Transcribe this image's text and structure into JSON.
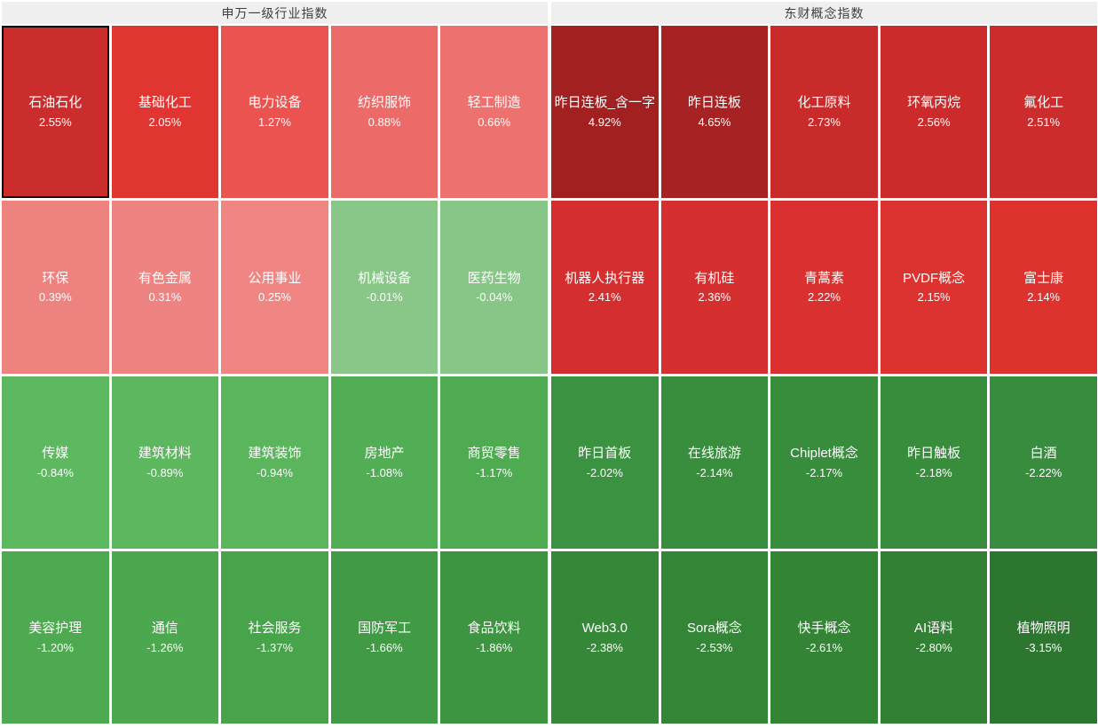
{
  "page": {
    "background": "#ffffff",
    "gutter_color": "#ffffff",
    "header_bg": "#efefef",
    "header_text_color": "#404040",
    "tile_text_color": "#ffffff",
    "selected_border_color": "#000000"
  },
  "chart_data": {
    "type": "heatmap",
    "legend_rule": "red = positive daily change, green = negative daily change; darker shade = larger magnitude",
    "groups": [
      {
        "title": "申万一级行业指数",
        "tiles": [
          {
            "label": "石油石化",
            "pct": 2.55,
            "display": "2.55%",
            "color": "#cb2c2c",
            "selected": true
          },
          {
            "label": "基础化工",
            "pct": 2.05,
            "display": "2.05%",
            "color": "#e03531",
            "selected": false
          },
          {
            "label": "电力设备",
            "pct": 1.27,
            "display": "1.27%",
            "color": "#eb5350",
            "selected": false
          },
          {
            "label": "纺织服饰",
            "pct": 0.88,
            "display": "0.88%",
            "color": "#ec6b68",
            "selected": false
          },
          {
            "label": "轻工制造",
            "pct": 0.66,
            "display": "0.66%",
            "color": "#ed716e",
            "selected": false
          },
          {
            "label": "环保",
            "pct": 0.39,
            "display": "0.39%",
            "color": "#ee827f",
            "selected": false
          },
          {
            "label": "有色金属",
            "pct": 0.31,
            "display": "0.31%",
            "color": "#ee8481",
            "selected": false
          },
          {
            "label": "公用事业",
            "pct": 0.25,
            "display": "0.25%",
            "color": "#ef8683",
            "selected": false
          },
          {
            "label": "机械设备",
            "pct": -0.01,
            "display": "-0.01%",
            "color": "#88c788",
            "selected": false
          },
          {
            "label": "医药生物",
            "pct": -0.04,
            "display": "-0.04%",
            "color": "#87c687",
            "selected": false
          },
          {
            "label": "传媒",
            "pct": -0.84,
            "display": "-0.84%",
            "color": "#5db95f",
            "selected": false
          },
          {
            "label": "建筑材料",
            "pct": -0.89,
            "display": "-0.89%",
            "color": "#5cb75e",
            "selected": false
          },
          {
            "label": "建筑装饰",
            "pct": -0.94,
            "display": "-0.94%",
            "color": "#5ab55c",
            "selected": false
          },
          {
            "label": "房地产",
            "pct": -1.08,
            "display": "-1.08%",
            "color": "#51ae54",
            "selected": false
          },
          {
            "label": "商贸零售",
            "pct": -1.17,
            "display": "-1.17%",
            "color": "#4eab51",
            "selected": false
          },
          {
            "label": "美容护理",
            "pct": -1.2,
            "display": "-1.20%",
            "color": "#4daa50",
            "selected": false
          },
          {
            "label": "通信",
            "pct": -1.26,
            "display": "-1.26%",
            "color": "#4ba84e",
            "selected": false
          },
          {
            "label": "社会服务",
            "pct": -1.37,
            "display": "-1.37%",
            "color": "#48a44b",
            "selected": false
          },
          {
            "label": "国防军工",
            "pct": -1.66,
            "display": "-1.66%",
            "color": "#419b45",
            "selected": false
          },
          {
            "label": "食品饮料",
            "pct": -1.86,
            "display": "-1.86%",
            "color": "#3d9541",
            "selected": false
          }
        ]
      },
      {
        "title": "东财概念指数",
        "tiles": [
          {
            "label": "昨日连板_含一字",
            "pct": 4.92,
            "display": "4.92%",
            "color": "#a32020",
            "selected": false
          },
          {
            "label": "昨日连板",
            "pct": 4.65,
            "display": "4.65%",
            "color": "#a72222",
            "selected": false
          },
          {
            "label": "化工原料",
            "pct": 2.73,
            "display": "2.73%",
            "color": "#c92a2a",
            "selected": false
          },
          {
            "label": "环氧丙烷",
            "pct": 2.56,
            "display": "2.56%",
            "color": "#cb2b2b",
            "selected": false
          },
          {
            "label": "氟化工",
            "pct": 2.51,
            "display": "2.51%",
            "color": "#cd2c2c",
            "selected": false
          },
          {
            "label": "机器人执行器",
            "pct": 2.41,
            "display": "2.41%",
            "color": "#d42f2e",
            "selected": false
          },
          {
            "label": "有机硅",
            "pct": 2.36,
            "display": "2.36%",
            "color": "#d5302f",
            "selected": false
          },
          {
            "label": "青蒿素",
            "pct": 2.22,
            "display": "2.22%",
            "color": "#da3130",
            "selected": false
          },
          {
            "label": "PVDF概念",
            "pct": 2.15,
            "display": "2.15%",
            "color": "#dc3230",
            "selected": false
          },
          {
            "label": "富士康",
            "pct": 2.14,
            "display": "2.14%",
            "color": "#de322e",
            "selected": false
          },
          {
            "label": "昨日首板",
            "pct": -2.02,
            "display": "-2.02%",
            "color": "#3b9240",
            "selected": false
          },
          {
            "label": "在线旅游",
            "pct": -2.14,
            "display": "-2.14%",
            "color": "#398e3e",
            "selected": false
          },
          {
            "label": "Chiplet概念",
            "pct": -2.17,
            "display": "-2.17%",
            "color": "#388d3d",
            "selected": false
          },
          {
            "label": "昨日触板",
            "pct": -2.18,
            "display": "-2.18%",
            "color": "#388d3d",
            "selected": false
          },
          {
            "label": "白酒",
            "pct": -2.22,
            "display": "-2.22%",
            "color": "#388c3d",
            "selected": false
          },
          {
            "label": "Web3.0",
            "pct": -2.38,
            "display": "-2.38%",
            "color": "#368839",
            "selected": false
          },
          {
            "label": "Sora概念",
            "pct": -2.53,
            "display": "-2.53%",
            "color": "#348637",
            "selected": false
          },
          {
            "label": "快手概念",
            "pct": -2.61,
            "display": "-2.61%",
            "color": "#338435",
            "selected": false
          },
          {
            "label": "AI语料",
            "pct": -2.8,
            "display": "-2.80%",
            "color": "#318034",
            "selected": false
          },
          {
            "label": "植物照明",
            "pct": -3.15,
            "display": "-3.15%",
            "color": "#2d7630",
            "selected": false
          }
        ]
      }
    ]
  }
}
